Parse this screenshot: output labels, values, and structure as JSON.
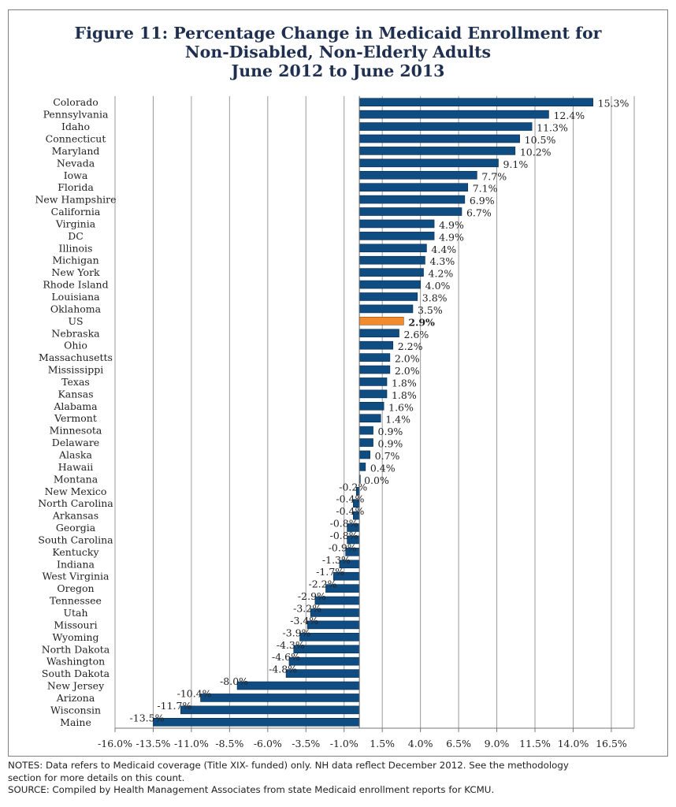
{
  "chart_data": {
    "type": "bar",
    "orientation": "horizontal",
    "title_lines": [
      "Figure 11: Percentage Change in Medicaid Enrollment for",
      "Non-Disabled, Non-Elderly Adults",
      "June 2012 to June 2013"
    ],
    "categories": [
      "Colorado",
      "Pennsylvania",
      "Idaho",
      "Connecticut",
      "Maryland",
      "Nevada",
      "Iowa",
      "Florida",
      "New Hampshire",
      "California",
      "Virginia",
      "DC",
      "Illinois",
      "Michigan",
      "New York",
      "Rhode Island",
      "Louisiana",
      "Oklahoma",
      "US",
      "Nebraska",
      "Ohio",
      "Massachusetts",
      "Mississippi",
      "Texas",
      "Kansas",
      "Alabama",
      "Vermont",
      "Minnesota",
      "Delaware",
      "Alaska",
      "Hawaii",
      "Montana",
      "New Mexico",
      "North Carolina",
      "Arkansas",
      "Georgia",
      "South Carolina",
      "Kentucky",
      "Indiana",
      "West Virginia",
      "Oregon",
      "Tennessee",
      "Utah",
      "Missouri",
      "Wyoming",
      "North Dakota",
      "Washington",
      "South Dakota",
      "New Jersey",
      "Arizona",
      "Wisconsin",
      "Maine"
    ],
    "values": [
      15.3,
      12.4,
      11.3,
      10.5,
      10.2,
      9.1,
      7.7,
      7.1,
      6.9,
      6.7,
      4.9,
      4.9,
      4.4,
      4.3,
      4.2,
      4.0,
      3.8,
      3.5,
      2.9,
      2.6,
      2.2,
      2.0,
      2.0,
      1.8,
      1.8,
      1.6,
      1.4,
      0.9,
      0.9,
      0.7,
      0.4,
      0.0,
      -0.2,
      -0.4,
      -0.4,
      -0.8,
      -0.8,
      -0.9,
      -1.3,
      -1.7,
      -2.2,
      -2.9,
      -3.2,
      -3.4,
      -3.9,
      -4.3,
      -4.6,
      -4.8,
      -8.0,
      -10.4,
      -11.7,
      -13.5
    ],
    "value_labels": [
      "15.3%",
      "12.4%",
      "11.3%",
      "10.5%",
      "10.2%",
      "9.1%",
      "7.7%",
      "7.1%",
      "6.9%",
      "6.7%",
      "4.9%",
      "4.9%",
      "4.4%",
      "4.3%",
      "4.2%",
      "4.0%",
      "3.8%",
      "3.5%",
      "2.9%",
      "2.6%",
      "2.2%",
      "2.0%",
      "2.0%",
      "1.8%",
      "1.8%",
      "1.6%",
      "1.4%",
      "0.9%",
      "0.9%",
      "0.7%",
      "0.4%",
      "0.0%",
      "-0.2%",
      "-0.4%",
      "-0.4%",
      "-0.8%",
      "-0.8%",
      "-0.9%",
      "-1.3%",
      "-1.7%",
      "-2.2%",
      "-2.9%",
      "-3.2%",
      "-3.4%",
      "-3.9%",
      "-4.3%",
      "-4.6%",
      "-4.8%",
      "-8.0%",
      "-10.4%",
      "-11.7%",
      "-13.5%"
    ],
    "highlight_category": "US",
    "x_ticks": [
      -16.0,
      -13.5,
      -11.0,
      -8.5,
      -6.0,
      -3.5,
      -1.0,
      1.5,
      4.0,
      6.5,
      9.0,
      11.5,
      14.0,
      16.5
    ],
    "x_tick_labels": [
      "-16.0%",
      "-13.5%",
      "-11.0%",
      "-8.5%",
      "-6.0%",
      "-3.5%",
      "-1.0%",
      "1.5%",
      "4.0%",
      "6.5%",
      "9.0%",
      "11.5%",
      "14.0%",
      "16.5%"
    ],
    "xlim": [
      -16.0,
      18.0
    ],
    "grid": true,
    "colors": {
      "bar": "#0f4c81",
      "bar_edge": "#0b2a4a",
      "highlight": "#f28a2e",
      "highlight_edge": "#8a4a12",
      "grid": "#9a9a9a"
    }
  },
  "notes": {
    "line1": "NOTES: Data refers to Medicaid coverage (Title XIX- funded) only. NH data reflect December 2012. See the methodology",
    "line2": "section for more details on this count.",
    "line3": "SOURCE: Compiled by Health Management Associates from state Medicaid enrollment reports for KCMU."
  }
}
